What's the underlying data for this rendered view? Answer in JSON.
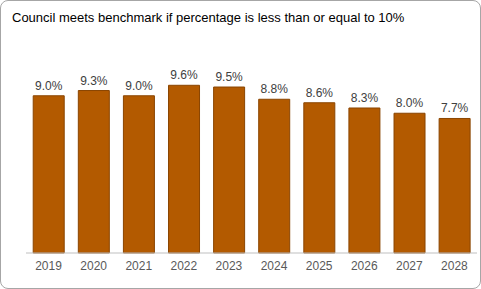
{
  "chart_data": {
    "type": "bar",
    "title": "Council meets benchmark if percentage is less than or equal to 10%",
    "categories": [
      "2019",
      "2020",
      "2021",
      "2022",
      "2023",
      "2024",
      "2025",
      "2026",
      "2027",
      "2028"
    ],
    "values": [
      9.0,
      9.3,
      9.0,
      9.6,
      9.5,
      8.8,
      8.6,
      8.3,
      8.0,
      7.7
    ],
    "value_labels": [
      "9.0%",
      "9.3%",
      "9.0%",
      "9.6%",
      "9.5%",
      "8.8%",
      "8.6%",
      "8.3%",
      "8.0%",
      "7.7%"
    ],
    "color": "#b35a00",
    "data_labels": true,
    "tick_labels": "x",
    "grid": false
  }
}
